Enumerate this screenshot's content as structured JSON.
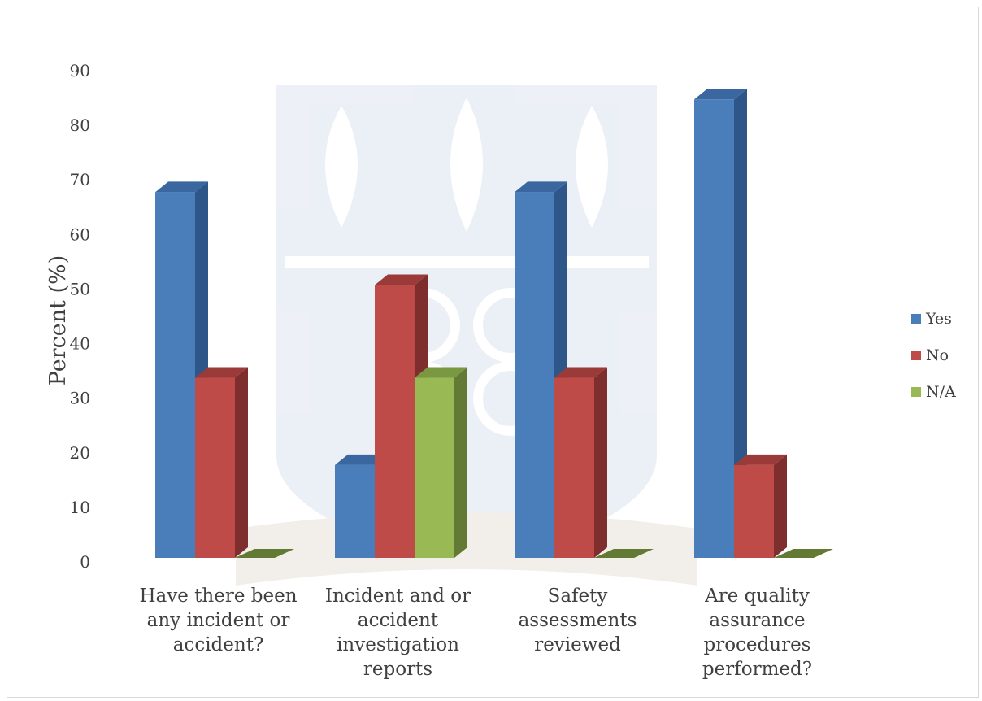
{
  "chart_data": {
    "type": "bar",
    "subtype": "3d-clustered-column",
    "title": "",
    "xlabel": "",
    "ylabel": "Percent (%)",
    "ylim": [
      0,
      90
    ],
    "yticks": [
      0,
      10,
      20,
      30,
      40,
      50,
      60,
      70,
      80,
      90
    ],
    "grid": false,
    "legend_position": "right",
    "categories": [
      "Have there been any incident or accident?",
      "Incident and or accident investigation reports",
      "Safety assessments reviewed",
      "Are quality assurance procedures performed?"
    ],
    "category_lines": [
      [
        "Have there been",
        "any incident or",
        "accident?"
      ],
      [
        "Incident and or",
        "accident",
        "investigation",
        "reports"
      ],
      [
        "Safety",
        "assessments",
        "reviewed"
      ],
      [
        "Are quality",
        "assurance",
        "procedures",
        "performed?"
      ]
    ],
    "series": [
      {
        "name": "Yes",
        "values": [
          67,
          17,
          67,
          84
        ],
        "color": "#4a7ebb",
        "side_color": "#2e5688",
        "top_color": "#3a67a0"
      },
      {
        "name": "No",
        "values": [
          33,
          50,
          33,
          17
        ],
        "color": "#be4b48",
        "side_color": "#7e2f2d",
        "top_color": "#9b3b39"
      },
      {
        "name": "N/A",
        "values": [
          0,
          33,
          0,
          0
        ],
        "color": "#98b954",
        "side_color": "#627a33",
        "top_color": "#7a9742"
      }
    ]
  }
}
